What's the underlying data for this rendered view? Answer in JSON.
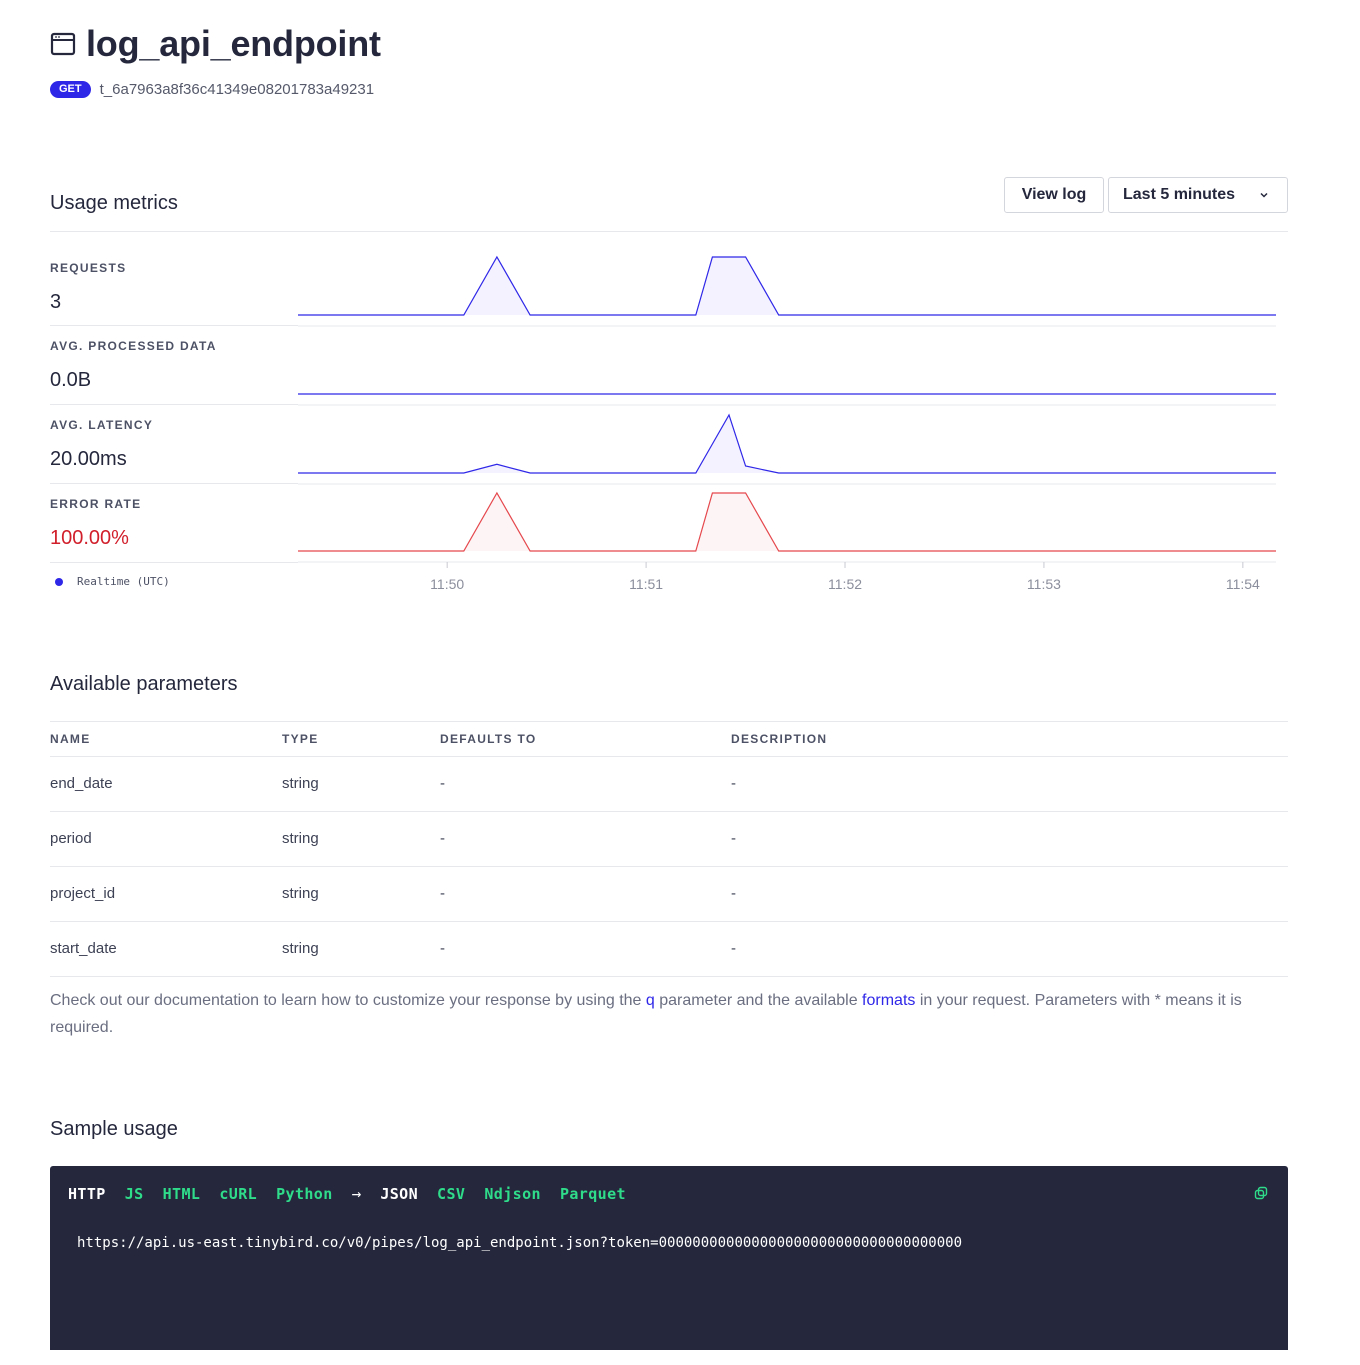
{
  "header": {
    "title": "log_api_endpoint",
    "method": "GET",
    "token_id": "t_6a7963a8f36c41349e08201783a49231"
  },
  "usage": {
    "title": "Usage metrics",
    "view_log_label": "View log",
    "range_label": "Last 5 minutes",
    "legend_label": "Realtime (UTC)",
    "metrics": [
      {
        "label": "REQUESTS",
        "value": "3"
      },
      {
        "label": "AVG. PROCESSED DATA",
        "value": "0.0B"
      },
      {
        "label": "AVG. LATENCY",
        "value": "20.00ms"
      },
      {
        "label": "ERROR RATE",
        "value": "100.00%"
      }
    ]
  },
  "chart_data": {
    "type": "area",
    "x": [
      "11:49:15",
      "11:49:45",
      "11:50:05",
      "11:50:15",
      "11:50:25",
      "11:51:15",
      "11:51:20",
      "11:51:25",
      "11:51:30",
      "11:51:40",
      "11:54:10"
    ],
    "x_ticks": [
      "11:50",
      "11:51",
      "11:52",
      "11:53",
      "11:54"
    ],
    "series": [
      {
        "values": [
          0,
          0,
          0,
          1,
          0,
          0,
          1,
          1,
          1,
          0,
          0
        ],
        "color": "#2f27e8"
      },
      {
        "values": [
          0,
          0,
          0,
          0,
          0,
          0,
          0,
          0,
          0,
          0,
          0
        ],
        "color": "#2f27e8"
      },
      {
        "values": [
          0,
          0,
          0,
          0.15,
          0,
          0,
          0.5,
          1,
          0.12,
          0,
          0
        ],
        "color": "#2f27e8"
      },
      {
        "values": [
          0,
          0,
          0,
          1,
          0,
          0,
          1,
          1,
          1,
          0,
          0
        ],
        "color": "#e5484d"
      }
    ],
    "legend_position": "bottom-left",
    "grid": false
  },
  "parameters": {
    "title": "Available parameters",
    "columns": [
      "NAME",
      "TYPE",
      "DEFAULTS TO",
      "DESCRIPTION"
    ],
    "rows": [
      {
        "name": "end_date",
        "type": "string",
        "default": "-",
        "description": "-"
      },
      {
        "name": "period",
        "type": "string",
        "default": "-",
        "description": "-"
      },
      {
        "name": "project_id",
        "type": "string",
        "default": "-",
        "description": "-"
      },
      {
        "name": "start_date",
        "type": "string",
        "default": "-",
        "description": "-"
      }
    ],
    "note_before_q": "Check out our documentation to learn how to customize your response by using the ",
    "note_q": "q",
    "note_mid": " parameter and the available ",
    "note_formats": "formats",
    "note_after": " in your request. Parameters with * means it is required."
  },
  "sample": {
    "title": "Sample usage",
    "tabs_left": [
      {
        "label": "HTTP",
        "active": true
      },
      {
        "label": "JS",
        "active": false
      },
      {
        "label": "HTML",
        "active": false
      },
      {
        "label": "cURL",
        "active": false
      },
      {
        "label": "Python",
        "active": false
      }
    ],
    "arrow": "→",
    "tabs_right": [
      {
        "label": "JSON",
        "active": true
      },
      {
        "label": "CSV",
        "active": false
      },
      {
        "label": "Ndjson",
        "active": false
      },
      {
        "label": "Parquet",
        "active": false
      }
    ],
    "url": "https://api.us-east.tinybird.co/v0/pipes/log_api_endpoint.json?token=000000000000000000000000000000000000",
    "colors": {
      "active": "#ffffff",
      "inactive": "#2fdc8a"
    }
  }
}
